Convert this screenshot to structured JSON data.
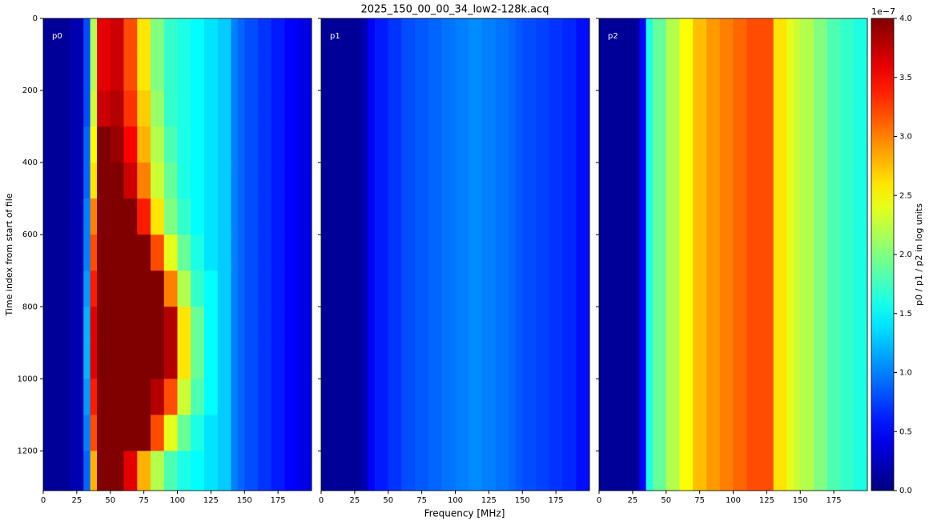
{
  "chart_data": {
    "type": "heatmap",
    "title": "2025_150_00_00_34_low2-128k.acq",
    "xlabel": "Frequency [MHz]",
    "ylabel": "Time index from start of file",
    "xlim": [
      0,
      200
    ],
    "xticks": [
      0,
      25,
      50,
      75,
      100,
      125,
      150,
      175
    ],
    "ylim": [
      0,
      1310
    ],
    "y_inverted": true,
    "yticks": [
      0,
      200,
      400,
      600,
      800,
      1000,
      1200
    ],
    "x_edges": [
      0,
      10,
      20,
      30,
      35,
      40,
      50,
      60,
      70,
      80,
      90,
      100,
      110,
      120,
      130,
      140,
      145,
      150,
      160,
      170,
      180,
      190,
      200
    ],
    "panels": [
      {
        "name": "p0",
        "y_edges": [
          0,
          100,
          200,
          300,
          400,
          500,
          600,
          700,
          800,
          900,
          1000,
          1100,
          1200,
          1310
        ],
        "values": [
          [
            0.1,
            0.1,
            0.2,
            0.8,
            2.2,
            3.6,
            3.7,
            3.2,
            2.6,
            2.0,
            1.7,
            1.6,
            1.5,
            1.4,
            1.3,
            1.0,
            0.9,
            0.8,
            0.7,
            0.6,
            0.5,
            0.4
          ],
          [
            0.1,
            0.1,
            0.2,
            0.8,
            2.2,
            3.6,
            3.7,
            3.2,
            2.6,
            2.0,
            1.7,
            1.6,
            1.5,
            1.4,
            1.3,
            1.0,
            0.9,
            0.8,
            0.7,
            0.6,
            0.5,
            0.4
          ],
          [
            0.1,
            0.1,
            0.2,
            0.8,
            2.3,
            3.7,
            3.8,
            3.3,
            2.7,
            2.1,
            1.7,
            1.6,
            1.5,
            1.4,
            1.3,
            1.0,
            0.9,
            0.8,
            0.7,
            0.6,
            0.5,
            0.4
          ],
          [
            0.1,
            0.1,
            0.2,
            0.9,
            2.5,
            4,
            3.9,
            3.5,
            2.8,
            2.2,
            1.8,
            1.6,
            1.5,
            1.4,
            1.3,
            1.0,
            0.9,
            0.8,
            0.7,
            0.6,
            0.5,
            0.4
          ],
          [
            0.1,
            0.1,
            0.2,
            0.9,
            2.6,
            4,
            4,
            3.7,
            3.0,
            2.3,
            1.9,
            1.6,
            1.5,
            1.4,
            1.3,
            1.0,
            0.9,
            0.8,
            0.7,
            0.6,
            0.5,
            0.4
          ],
          [
            0.1,
            0.1,
            0.2,
            1.0,
            3.0,
            4,
            4,
            4,
            3.4,
            2.6,
            2.0,
            1.7,
            1.5,
            1.4,
            1.3,
            1.0,
            0.9,
            0.8,
            0.7,
            0.6,
            0.5,
            0.4
          ],
          [
            0.1,
            0.1,
            0.2,
            1.0,
            3.2,
            4,
            4,
            4,
            4,
            3.2,
            2.4,
            1.9,
            1.6,
            1.4,
            1.3,
            1.0,
            0.9,
            0.8,
            0.7,
            0.6,
            0.5,
            0.4
          ],
          [
            0.1,
            0.1,
            0.2,
            1.1,
            3.4,
            4,
            4,
            4,
            4,
            4,
            3.0,
            2.2,
            1.7,
            1.5,
            1.3,
            1.0,
            0.9,
            0.8,
            0.7,
            0.6,
            0.5,
            0.4
          ],
          [
            0.1,
            0.1,
            0.2,
            1.2,
            3.6,
            4,
            4,
            4,
            4,
            4,
            3.8,
            2.6,
            1.9,
            1.5,
            1.3,
            1.0,
            0.9,
            0.8,
            0.7,
            0.6,
            0.5,
            0.4
          ],
          [
            0.1,
            0.1,
            0.2,
            1.2,
            3.6,
            4,
            4,
            4,
            4,
            4,
            3.8,
            2.6,
            1.9,
            1.5,
            1.3,
            1.0,
            0.9,
            0.8,
            0.7,
            0.6,
            0.5,
            0.4
          ],
          [
            0.1,
            0.1,
            0.2,
            1.1,
            3.4,
            4,
            4,
            4,
            4,
            3.8,
            3.2,
            2.3,
            1.8,
            1.5,
            1.3,
            1.0,
            0.9,
            0.8,
            0.7,
            0.6,
            0.5,
            0.4
          ],
          [
            0.1,
            0.1,
            0.2,
            1.0,
            3.2,
            4,
            4,
            4,
            4,
            3.2,
            2.4,
            1.9,
            1.6,
            1.4,
            1.3,
            1.0,
            0.9,
            0.8,
            0.7,
            0.6,
            0.5,
            0.4
          ],
          [
            0.1,
            0.1,
            0.2,
            0.9,
            2.8,
            4,
            4,
            3.6,
            2.8,
            2.2,
            1.8,
            1.6,
            1.5,
            1.4,
            1.3,
            1.0,
            0.9,
            0.8,
            0.7,
            0.6,
            0.5,
            0.4
          ]
        ]
      },
      {
        "name": "p1",
        "y_edges": [
          0,
          1310
        ],
        "values": [
          [
            0.1,
            0.1,
            0.1,
            0.2,
            0.5,
            0.6,
            0.7,
            0.8,
            0.85,
            0.9,
            0.95,
            1.0,
            1.05,
            1.0,
            0.95,
            0.9,
            0.85,
            0.8,
            0.75,
            0.7,
            0.65,
            0.55
          ]
        ]
      },
      {
        "name": "p2",
        "y_edges": [
          0,
          1310
        ],
        "values": [
          [
            0.1,
            0.1,
            0.1,
            0.5,
            1.6,
            1.9,
            2.2,
            2.5,
            2.75,
            2.9,
            3.0,
            3.1,
            3.2,
            3.2,
            2.6,
            2.4,
            2.3,
            2.2,
            2.0,
            1.8,
            1.7,
            1.6
          ]
        ]
      }
    ],
    "colorbar": {
      "label": "p0 / p1 / p2 in log units",
      "offset_label": "1e−7",
      "colormap": "jet",
      "lim": [
        0,
        4
      ],
      "ticks": [
        {
          "value": 0,
          "label": "0.0"
        },
        {
          "value": 0.5,
          "label": "0.5"
        },
        {
          "value": 1,
          "label": "1.0"
        },
        {
          "value": 1.5,
          "label": "1.5"
        },
        {
          "value": 2,
          "label": "2.0"
        },
        {
          "value": 2.5,
          "label": "2.5"
        },
        {
          "value": 3,
          "label": "3.0"
        },
        {
          "value": 3.5,
          "label": "3.5"
        },
        {
          "value": 4,
          "label": "4.0"
        }
      ]
    }
  }
}
